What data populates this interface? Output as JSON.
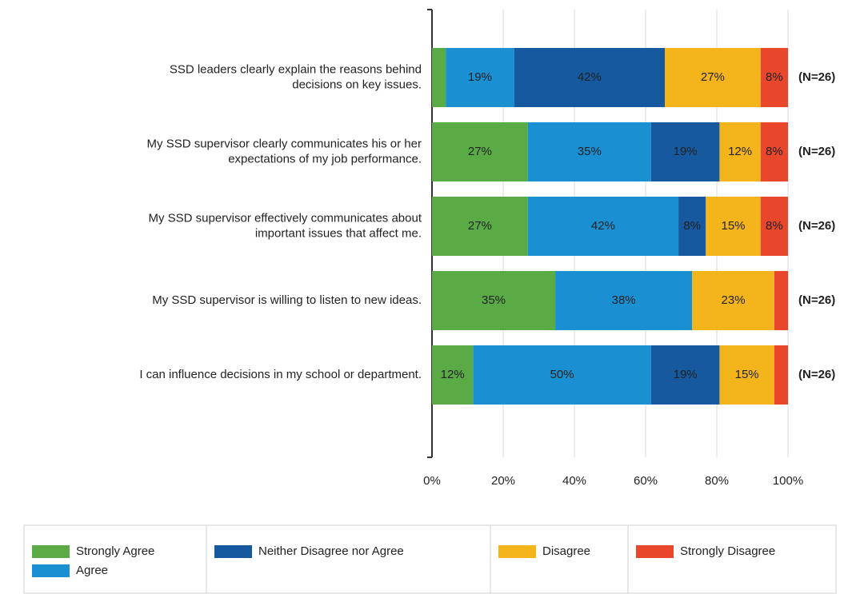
{
  "chart_data": {
    "type": "bar",
    "orientation": "horizontal",
    "stacked": true,
    "categories": [
      [
        "SSD leaders clearly explain the reasons behind",
        "decisions on key issues."
      ],
      [
        "My SSD supervisor clearly communicates his or her",
        "expectations of my job performance."
      ],
      [
        "My SSD supervisor effectively communicates about",
        "important issues that affect me."
      ],
      [
        "My SSD supervisor is willing to listen to new ideas."
      ],
      [
        "I can influence decisions in my school or department."
      ]
    ],
    "series": [
      {
        "name": "Strongly Agree",
        "color": "#5aab46",
        "values": [
          3.85,
          26.92,
          26.92,
          34.62,
          11.54
        ],
        "value_labels": [
          null,
          "27%",
          "27%",
          "35%",
          "12%"
        ]
      },
      {
        "name": "Agree",
        "color": "#1a8fd1",
        "values": [
          19.23,
          34.62,
          42.31,
          38.46,
          50
        ],
        "value_labels": [
          "19%",
          "35%",
          "42%",
          "38%",
          "50%"
        ]
      },
      {
        "name": "Neither Disagree nor Agree",
        "color": "#17599e",
        "values": [
          42.31,
          19.23,
          7.69,
          0,
          19.23
        ],
        "value_labels": [
          "42%",
          "19%",
          "8%",
          null,
          "19%"
        ]
      },
      {
        "name": "Disagree",
        "color": "#f3b51b",
        "values": [
          26.92,
          11.54,
          15.38,
          23.08,
          15.38
        ],
        "value_labels": [
          "27%",
          "12%",
          "15%",
          "23%",
          "15%"
        ]
      },
      {
        "name": "Strongly Disagree",
        "color": "#e8472c",
        "values": [
          7.69,
          7.69,
          7.69,
          3.85,
          3.85
        ],
        "value_labels": [
          "8%",
          "8%",
          "8%",
          null,
          null
        ]
      }
    ],
    "annotations": [
      "(N=26)",
      "(N=26)",
      "(N=26)",
      "(N=26)",
      "(N=26)"
    ],
    "xlim": [
      0,
      100
    ],
    "xticks": [
      {
        "value": 0,
        "label": "0%"
      },
      {
        "value": 20,
        "label": "20%"
      },
      {
        "value": 40,
        "label": "40%"
      },
      {
        "value": 60,
        "label": "60%"
      },
      {
        "value": 80,
        "label": "80%"
      },
      {
        "value": 100,
        "label": "100%"
      }
    ],
    "grid": true,
    "legend": "bottom"
  }
}
